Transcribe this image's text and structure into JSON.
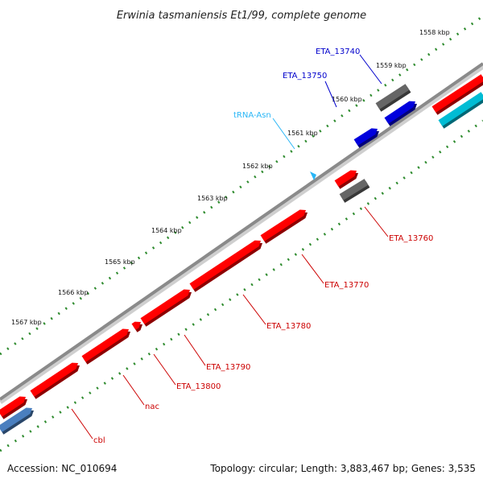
{
  "title": "Erwinia tasmaniensis Et1/99, complete genome",
  "footer": {
    "accession": "Accession: NC_010694",
    "summary": "Topology: circular; Length: 3,883,467 bp; Genes: 3,535"
  },
  "scale": {
    "ticks": [
      "1558 kbp",
      "1559 kbp",
      "1560 kbp",
      "1561 kbp",
      "1562 kbp",
      "1563 kbp",
      "1564 kbp",
      "1565 kbp",
      "1566 kbp",
      "1567 kbp"
    ]
  },
  "colors": {
    "backbone": "#8a8a8a",
    "tick_green": "#2e8b2e",
    "gene_red": "#ff0000",
    "gene_blue": "#0000dd",
    "gene_grey": "#666666",
    "gene_cyan": "#00bcd4",
    "gene_steel": "#4a7fbf",
    "trna_cyan": "#29b6f6",
    "label_red": "#cc0000",
    "label_blue": "#0000cc",
    "label_cyan": "#29b6f6"
  },
  "gene_labels": [
    {
      "text": "ETA_13740",
      "color_key": "label_blue"
    },
    {
      "text": "ETA_13750",
      "color_key": "label_blue"
    },
    {
      "text": "tRNA-Asn",
      "color_key": "label_cyan"
    },
    {
      "text": "ETA_13760",
      "color_key": "label_red"
    },
    {
      "text": "ETA_13770",
      "color_key": "label_red"
    },
    {
      "text": "ETA_13780",
      "color_key": "label_red"
    },
    {
      "text": "ETA_13790",
      "color_key": "label_red"
    },
    {
      "text": "ETA_13800",
      "color_key": "label_red"
    },
    {
      "text": "nac",
      "color_key": "label_red"
    },
    {
      "text": "cbl",
      "color_key": "label_red"
    }
  ]
}
